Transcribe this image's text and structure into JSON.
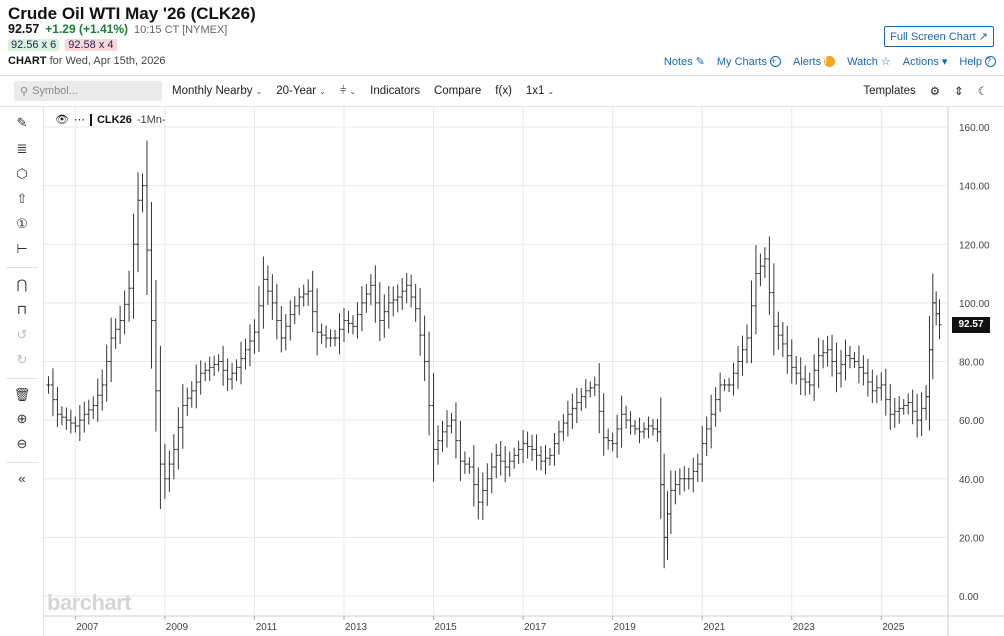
{
  "header": {
    "title": "Crude Oil WTI May '26 (CLK26)",
    "last": "92.57",
    "change": "+1.29 (+1.41%)",
    "timestamp": "10:15 CT [NYMEX]",
    "bid": "92.56 x 6",
    "ask": "92.58 x 4",
    "chart_for_label": "CHART",
    "chart_for_date": "for Wed, Apr 15th, 2026",
    "fullscreen": "Full Screen Chart"
  },
  "links": [
    "Notes",
    "My Charts",
    "Alerts",
    "Watch",
    "Actions",
    "Help"
  ],
  "toolbar": {
    "search_placeholder": "Symbol...",
    "period": "Monthly Nearby",
    "range": "20-Year",
    "indicators": "Indicators",
    "compare": "Compare",
    "fx": "f(x)",
    "layout": "1x1",
    "templates": "Templates"
  },
  "legend": {
    "symbol": "CLK26",
    "period": "-1Mn-"
  },
  "watermark": "barchart",
  "price_badge": "92.57",
  "icons": [
    "pencil-icon",
    "fib-icon",
    "shape-icon",
    "arrow-icon",
    "annotation-icon",
    "measure-icon",
    "magnet-icon",
    "lock-icon",
    "undo-icon",
    "redo-icon",
    "trash-icon",
    "zoom-in-icon",
    "zoom-out-icon",
    "collapse-icon",
    "gear-icon",
    "expand-icon",
    "dark-mode-icon"
  ],
  "chart_data": {
    "type": "ohlc",
    "xlabel": "",
    "ylabel": "",
    "ylim": [
      0,
      160
    ],
    "yticks": [
      "160.00",
      "140.00",
      "120.00",
      "100.00",
      "80.00",
      "60.00",
      "40.00",
      "20.00",
      "0.00"
    ],
    "xticks": [
      "2007",
      "2009",
      "2011",
      "2013",
      "2015",
      "2017",
      "2019",
      "2021",
      "2023",
      "2025"
    ],
    "series": [
      {
        "points": [
          [
            2006.4,
            72
          ],
          [
            2006.6,
            62
          ],
          [
            2006.8,
            60
          ],
          [
            2007.0,
            58
          ],
          [
            2007.2,
            62
          ],
          [
            2007.4,
            65
          ],
          [
            2007.6,
            72
          ],
          [
            2007.8,
            88
          ],
          [
            2008.0,
            94
          ],
          [
            2008.2,
            105
          ],
          [
            2008.4,
            135
          ],
          [
            2008.5,
            140
          ],
          [
            2008.6,
            118
          ],
          [
            2008.8,
            70
          ],
          [
            2008.9,
            45
          ],
          [
            2009.0,
            40
          ],
          [
            2009.2,
            50
          ],
          [
            2009.4,
            65
          ],
          [
            2009.6,
            70
          ],
          [
            2009.8,
            76
          ],
          [
            2010.0,
            78
          ],
          [
            2010.2,
            80
          ],
          [
            2010.4,
            74
          ],
          [
            2010.6,
            78
          ],
          [
            2010.8,
            84
          ],
          [
            2011.0,
            90
          ],
          [
            2011.2,
            108
          ],
          [
            2011.4,
            100
          ],
          [
            2011.6,
            88
          ],
          [
            2011.8,
            96
          ],
          [
            2012.0,
            102
          ],
          [
            2012.2,
            104
          ],
          [
            2012.4,
            90
          ],
          [
            2012.6,
            88
          ],
          [
            2012.8,
            88
          ],
          [
            2013.0,
            94
          ],
          [
            2013.2,
            92
          ],
          [
            2013.4,
            100
          ],
          [
            2013.6,
            106
          ],
          [
            2013.8,
            94
          ],
          [
            2014.0,
            100
          ],
          [
            2014.2,
            102
          ],
          [
            2014.4,
            106
          ],
          [
            2014.6,
            98
          ],
          [
            2014.8,
            80
          ],
          [
            2015.0,
            50
          ],
          [
            2015.2,
            56
          ],
          [
            2015.4,
            60
          ],
          [
            2015.6,
            46
          ],
          [
            2015.8,
            44
          ],
          [
            2016.0,
            32
          ],
          [
            2016.2,
            40
          ],
          [
            2016.4,
            48
          ],
          [
            2016.6,
            44
          ],
          [
            2016.8,
            48
          ],
          [
            2017.0,
            52
          ],
          [
            2017.2,
            50
          ],
          [
            2017.4,
            46
          ],
          [
            2017.6,
            48
          ],
          [
            2017.8,
            56
          ],
          [
            2018.0,
            62
          ],
          [
            2018.2,
            66
          ],
          [
            2018.4,
            70
          ],
          [
            2018.6,
            72
          ],
          [
            2018.8,
            54
          ],
          [
            2019.0,
            52
          ],
          [
            2019.2,
            62
          ],
          [
            2019.4,
            58
          ],
          [
            2019.6,
            56
          ],
          [
            2019.8,
            58
          ],
          [
            2020.0,
            56
          ],
          [
            2020.15,
            20
          ],
          [
            2020.3,
            36
          ],
          [
            2020.5,
            40
          ],
          [
            2020.7,
            40
          ],
          [
            2020.9,
            45
          ],
          [
            2021.0,
            52
          ],
          [
            2021.2,
            62
          ],
          [
            2021.4,
            72
          ],
          [
            2021.6,
            72
          ],
          [
            2021.8,
            80
          ],
          [
            2022.0,
            88
          ],
          [
            2022.2,
            110
          ],
          [
            2022.4,
            115
          ],
          [
            2022.6,
            92
          ],
          [
            2022.8,
            86
          ],
          [
            2023.0,
            78
          ],
          [
            2023.2,
            74
          ],
          [
            2023.4,
            72
          ],
          [
            2023.6,
            82
          ],
          [
            2023.8,
            84
          ],
          [
            2024.0,
            76
          ],
          [
            2024.2,
            82
          ],
          [
            2024.4,
            80
          ],
          [
            2024.6,
            76
          ],
          [
            2024.8,
            70
          ],
          [
            2025.0,
            72
          ],
          [
            2025.2,
            62
          ],
          [
            2025.4,
            64
          ],
          [
            2025.6,
            66
          ],
          [
            2025.8,
            60
          ],
          [
            2026.0,
            68
          ],
          [
            2026.15,
            100
          ],
          [
            2026.3,
            92.57
          ]
        ]
      }
    ]
  }
}
